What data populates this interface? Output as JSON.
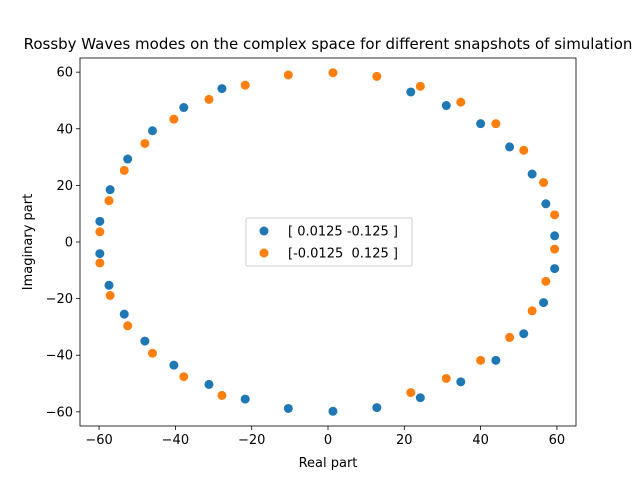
{
  "chart_data": {
    "type": "scatter",
    "title": "Rossby Waves modes on the complex space for different snapshots of simulation",
    "xlabel": "Real part",
    "ylabel": "Imaginary part",
    "xlim": [
      -65,
      65
    ],
    "ylim": [
      -65,
      65
    ],
    "xticks": [
      -60,
      -40,
      -20,
      0,
      20,
      40,
      60
    ],
    "yticks": [
      -60,
      -40,
      -20,
      0,
      20,
      40,
      60
    ],
    "grid": false,
    "legend_position": "center",
    "series": [
      {
        "name": "[ 0.0125 -0.125 ]",
        "color": "#1f77b4",
        "points": [
          [
            1.3,
            -59.8
          ],
          [
            12.8,
            -58.5
          ],
          [
            24.2,
            -55.0
          ],
          [
            34.8,
            -49.4
          ],
          [
            44.0,
            -41.8
          ],
          [
            51.3,
            -32.4
          ],
          [
            56.5,
            -21.4
          ],
          [
            59.4,
            -9.4
          ],
          [
            59.4,
            2.2
          ],
          [
            57.1,
            13.5
          ],
          [
            53.5,
            24.0
          ],
          [
            47.6,
            33.6
          ],
          [
            40.0,
            41.8
          ],
          [
            31.0,
            48.2
          ],
          [
            21.7,
            53.0
          ],
          [
            -27.8,
            54.2
          ],
          [
            -37.8,
            47.5
          ],
          [
            -46.0,
            39.3
          ],
          [
            -52.5,
            29.3
          ],
          [
            -57.1,
            18.5
          ],
          [
            -59.8,
            7.3
          ],
          [
            -59.8,
            -4.1
          ],
          [
            -57.4,
            -15.3
          ],
          [
            -53.4,
            -25.5
          ],
          [
            -48.0,
            -35.0
          ],
          [
            -40.4,
            -43.5
          ],
          [
            -31.2,
            -50.3
          ],
          [
            -21.7,
            -55.5
          ],
          [
            -10.4,
            -58.8
          ]
        ]
      },
      {
        "name": "[-0.0125  0.125 ]",
        "color": "#ff7f0e",
        "points": [
          [
            1.3,
            59.8
          ],
          [
            12.8,
            58.5
          ],
          [
            24.2,
            55.0
          ],
          [
            34.8,
            49.4
          ],
          [
            44.0,
            41.8
          ],
          [
            51.3,
            32.4
          ],
          [
            56.5,
            21.0
          ],
          [
            59.4,
            9.6
          ],
          [
            59.4,
            -2.5
          ],
          [
            57.1,
            -13.9
          ],
          [
            53.5,
            -24.3
          ],
          [
            47.6,
            -33.7
          ],
          [
            40.0,
            -41.8
          ],
          [
            31.0,
            -48.2
          ],
          [
            21.7,
            -53.2
          ],
          [
            -27.8,
            -54.2
          ],
          [
            -37.8,
            -47.6
          ],
          [
            -46.0,
            -39.3
          ],
          [
            -52.5,
            -29.6
          ],
          [
            -57.1,
            -18.9
          ],
          [
            -59.8,
            -7.4
          ],
          [
            -59.8,
            3.6
          ],
          [
            -57.4,
            14.6
          ],
          [
            -53.4,
            25.3
          ],
          [
            -48.0,
            34.8
          ],
          [
            -40.4,
            43.4
          ],
          [
            -31.2,
            50.4
          ],
          [
            -21.7,
            55.4
          ],
          [
            -10.4,
            59.0
          ]
        ]
      }
    ]
  }
}
